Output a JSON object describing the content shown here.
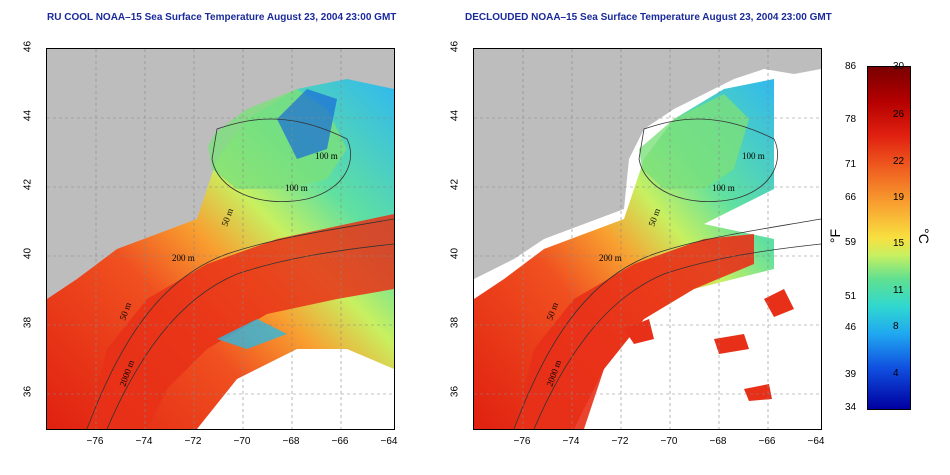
{
  "titles": {
    "left": "RU COOL NOAA–15 Sea Surface Temperature August 23, 2004 23:00 GMT",
    "right": "DECLOUDED NOAA–15 Sea Surface Temperature August 23, 2004 23:00 GMT"
  },
  "axes": {
    "x_ticks": [
      "−76",
      "−74",
      "−72",
      "−70",
      "−68",
      "−66",
      "−64"
    ],
    "y_ticks": [
      "46",
      "44",
      "42",
      "40",
      "38",
      "36"
    ]
  },
  "contours": {
    "left": [
      "100 m",
      "100 m",
      "50 m",
      "200 m",
      "50 m",
      "2000 m"
    ],
    "right": [
      "100 m",
      "100 m",
      "50 m",
      "200 m",
      "50 m",
      "2000 m"
    ]
  },
  "colorbar": {
    "fahrenheit": [
      "86",
      "78",
      "71",
      "66",
      "59",
      "51",
      "46",
      "39",
      "34"
    ],
    "celsius": [
      "30",
      "26",
      "22",
      "19",
      "15",
      "11",
      "8",
      "4"
    ],
    "unit_f": "°F",
    "unit_c": "°C"
  },
  "colors": {
    "land": "#bdbdbd",
    "cloud": "#ffffff",
    "title": "#1a2a9a"
  }
}
